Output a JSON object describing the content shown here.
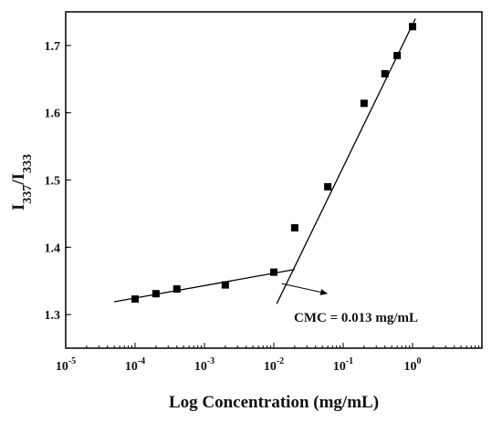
{
  "chart_data": {
    "type": "scatter",
    "x_scale": "log",
    "xlabel": "Log Concentration (mg/mL)",
    "ylabel": {
      "base": "I",
      "sub1": "337",
      "sep": "/I",
      "sub2": "333"
    },
    "xlim": [
      1e-05,
      10
    ],
    "ylim": [
      1.25,
      1.75
    ],
    "x_ticks": [
      {
        "value": 1e-05,
        "base": "10",
        "exp": "-5"
      },
      {
        "value": 0.0001,
        "base": "10",
        "exp": "-4"
      },
      {
        "value": 0.001,
        "base": "10",
        "exp": "-3"
      },
      {
        "value": 0.01,
        "base": "10",
        "exp": "-2"
      },
      {
        "value": 0.1,
        "base": "10",
        "exp": "-1"
      },
      {
        "value": 1,
        "base": "10",
        "exp": "0"
      }
    ],
    "y_ticks": [
      "1.3",
      "1.4",
      "1.5",
      "1.6",
      "1.7"
    ],
    "grid": false,
    "points": [
      {
        "x": 0.0001,
        "y": 1.323
      },
      {
        "x": 0.0002,
        "y": 1.331
      },
      {
        "x": 0.0004,
        "y": 1.338
      },
      {
        "x": 0.002,
        "y": 1.344
      },
      {
        "x": 0.01,
        "y": 1.363
      },
      {
        "x": 0.02,
        "y": 1.429
      },
      {
        "x": 0.06,
        "y": 1.49
      },
      {
        "x": 0.2,
        "y": 1.614
      },
      {
        "x": 0.4,
        "y": 1.658
      },
      {
        "x": 0.6,
        "y": 1.685
      },
      {
        "x": 1.0,
        "y": 1.728
      }
    ],
    "fit_lines": [
      {
        "x": [
          5e-05,
          0.02
        ],
        "y": [
          1.319,
          1.367
        ]
      },
      {
        "x": [
          0.011,
          1.1
        ],
        "y": [
          1.316,
          1.74
        ]
      }
    ],
    "annotation": {
      "text": "CMC = 0.013 mg/mL",
      "arrow_from": {
        "x": 0.013,
        "y": 1.346
      },
      "arrow_to": {
        "x": 0.06,
        "y": 1.331
      }
    }
  }
}
